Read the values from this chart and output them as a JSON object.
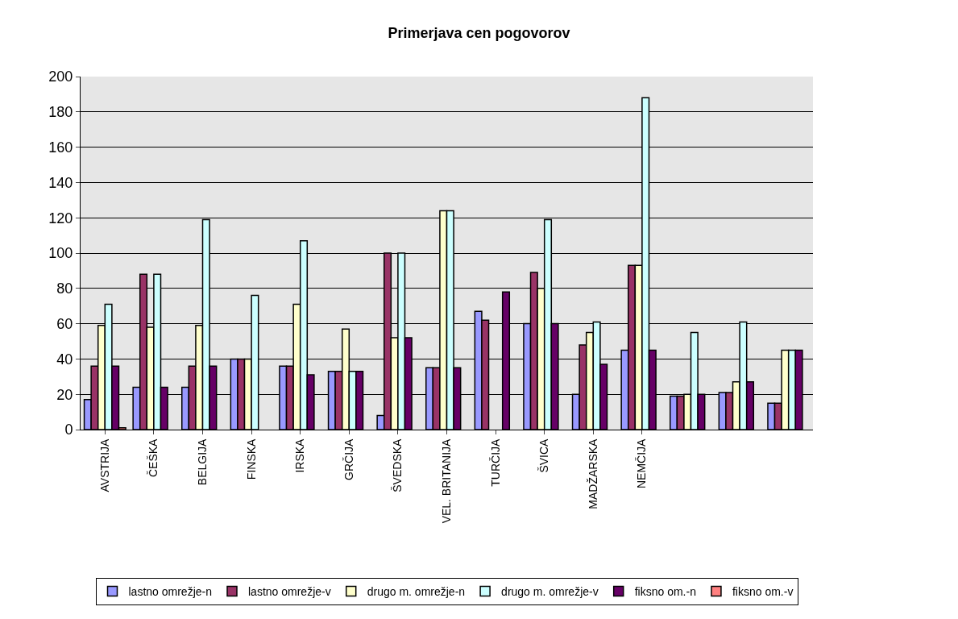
{
  "chart_data": {
    "type": "bar",
    "title": "Primerjava cen pogovorov",
    "categories": [
      "AVSTRIJA",
      "ČEŠKA",
      "BELGIJA",
      "FINSKA",
      "IRSKA",
      "GRČIJA",
      "ŠVEDSKA",
      "VEL. BRITANIJA",
      "TURČIJA",
      "ŠVICA",
      "MADŽARSKA",
      "NEMČIJA",
      null,
      null,
      null
    ],
    "series": [
      {
        "name": "lastno omrežje-n",
        "color": "#9999ff",
        "values": [
          17,
          24,
          24,
          40,
          36,
          33,
          8,
          35,
          67,
          60,
          20,
          45,
          19,
          21,
          15
        ]
      },
      {
        "name": "lastno omrežje-v",
        "color": "#993366",
        "values": [
          36,
          88,
          36,
          40,
          36,
          33,
          100,
          35,
          62,
          89,
          48,
          93,
          19,
          21,
          15
        ]
      },
      {
        "name": "drugo m. omrežje-n",
        "color": "#ffffcc",
        "values": [
          59,
          58,
          59,
          40,
          71,
          57,
          52,
          124,
          null,
          80,
          55,
          93,
          20,
          27,
          45
        ]
      },
      {
        "name": "drugo m. omrežje-v",
        "color": "#ccffff",
        "values": [
          71,
          88,
          119,
          76,
          107,
          33,
          100,
          124,
          null,
          119,
          61,
          188,
          55,
          61,
          45
        ]
      },
      {
        "name": "fiksno om.-n",
        "color": "#660066",
        "values": [
          36,
          24,
          36,
          null,
          31,
          33,
          52,
          35,
          78,
          60,
          37,
          45,
          20,
          27,
          45
        ]
      },
      {
        "name": "fiksno om.-v",
        "color": "#ff8080",
        "values": [
          1,
          null,
          null,
          null,
          null,
          null,
          null,
          null,
          null,
          null,
          null,
          null,
          null,
          null,
          null
        ]
      }
    ],
    "ylim": [
      0,
      200
    ],
    "yticks": [
      0,
      20,
      40,
      60,
      80,
      100,
      120,
      140,
      160,
      180,
      200
    ],
    "grid": "y",
    "legend": "bottom"
  }
}
